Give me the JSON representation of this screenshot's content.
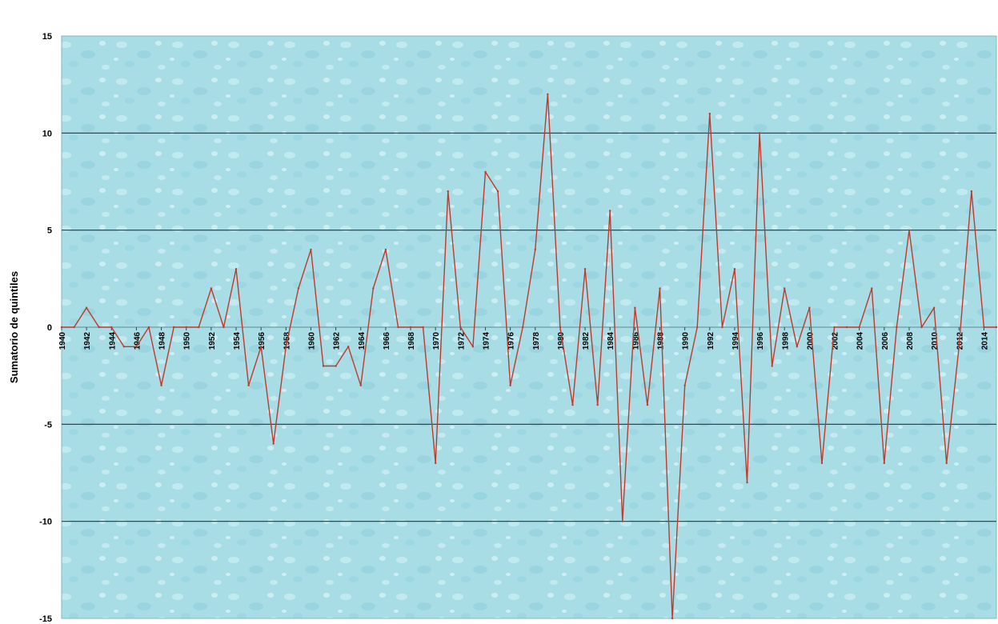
{
  "chart_data": {
    "type": "line",
    "title": "",
    "xlabel": "",
    "ylabel": "Sumatorio de quintiles",
    "ylim": [
      -15,
      15
    ],
    "yticks": [
      -15,
      -10,
      -5,
      0,
      5,
      10,
      15
    ],
    "xlim": [
      1940,
      2015
    ],
    "xtick_labels": [
      "1940",
      "1942",
      "1944",
      "1946",
      "1948",
      "1950",
      "1952",
      "1954",
      "1956",
      "1958",
      "1960",
      "1962",
      "1964",
      "1966",
      "1968",
      "1970",
      "1972",
      "1974",
      "1976",
      "1978",
      "1980",
      "1982",
      "1984",
      "1986",
      "1988",
      "1990",
      "1992",
      "1994",
      "1996",
      "1998",
      "2000",
      "2002",
      "2004",
      "2006",
      "2008",
      "2010",
      "2012",
      "2014"
    ],
    "grid": "horizontal",
    "background": "#a9dde6",
    "line_color": "#c0392b",
    "series": [
      {
        "x": [
          1940,
          1941,
          1942,
          1943,
          1944,
          1945,
          1946,
          1947,
          1948,
          1949,
          1950,
          1951,
          1952,
          1953,
          1954,
          1955,
          1956,
          1957,
          1958,
          1959,
          1960,
          1961,
          1962,
          1963,
          1964,
          1965,
          1966,
          1967,
          1968,
          1969,
          1970,
          1971,
          1972,
          1973,
          1974,
          1975,
          1976,
          1977,
          1978,
          1979,
          1980,
          1981,
          1982,
          1983,
          1984,
          1985,
          1986,
          1987,
          1988,
          1989,
          1990,
          1991,
          1992,
          1993,
          1994,
          1995,
          1996,
          1997,
          1998,
          1999,
          2000,
          2001,
          2002,
          2003,
          2004,
          2005,
          2006,
          2007,
          2008,
          2009,
          2010,
          2011,
          2012,
          2013,
          2014,
          2015
        ],
        "values": [
          0,
          0,
          1,
          0,
          0,
          -1,
          -1,
          0,
          -3,
          0,
          0,
          0,
          2,
          0,
          3,
          -3,
          -1,
          -6,
          -1,
          2,
          4,
          -2,
          -2,
          -1,
          -3,
          2,
          4,
          0,
          0,
          0,
          -7,
          7,
          0,
          -1,
          8,
          7,
          -3,
          0,
          4,
          12,
          0,
          -4,
          3,
          -4,
          6,
          -10,
          1,
          -4,
          2,
          -15,
          -3,
          0,
          11,
          0,
          3,
          -8,
          10,
          -2,
          2,
          -1,
          1,
          -7,
          0,
          0,
          0,
          2,
          -7,
          0,
          5,
          0,
          1,
          -7,
          -1,
          7,
          0,
          0
        ]
      }
    ]
  }
}
